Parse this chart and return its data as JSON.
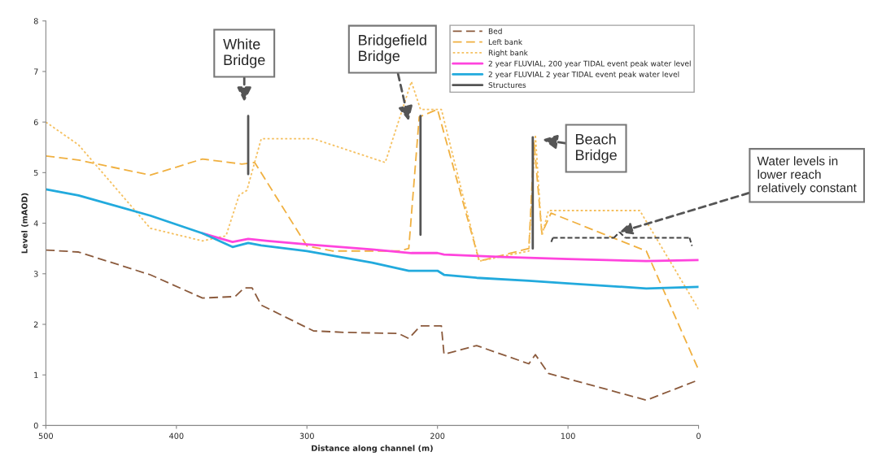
{
  "chart_data": {
    "type": "line",
    "xlabel": "Distance along channel (m)",
    "ylabel": "Level (mAOD)",
    "xlim": [
      500,
      0
    ],
    "ylim": [
      0,
      8
    ],
    "xticks": [
      500,
      400,
      300,
      200,
      100,
      0
    ],
    "yticks": [
      0,
      1,
      2,
      3,
      4,
      5,
      6,
      7,
      8
    ],
    "legend": "top right",
    "grid": false,
    "series": [
      {
        "name": "Bed",
        "color": "#8b5a3c",
        "line_style": "dashed",
        "x": [
          500,
          475,
          420,
          380,
          355,
          348,
          342,
          335,
          295,
          270,
          230,
          222,
          213,
          197,
          195,
          170,
          130,
          125,
          115,
          40,
          0
        ],
        "values": [
          3.47,
          3.43,
          2.98,
          2.52,
          2.55,
          2.72,
          2.72,
          2.38,
          1.87,
          1.84,
          1.82,
          1.72,
          1.97,
          1.97,
          1.41,
          1.58,
          1.22,
          1.4,
          1.03,
          0.5,
          0.9
        ]
      },
      {
        "name": "Left bank",
        "color": "#f0b040",
        "line_style": "dashed",
        "x": [
          500,
          475,
          420,
          380,
          350,
          340,
          300,
          280,
          230,
          222,
          214,
          200,
          168,
          130,
          126,
          120,
          113,
          40,
          0
        ],
        "values": [
          5.33,
          5.25,
          4.95,
          5.27,
          5.17,
          5.2,
          3.55,
          3.45,
          3.45,
          3.5,
          6.1,
          6.25,
          3.25,
          3.5,
          5.6,
          3.8,
          4.2,
          3.45,
          1.1
        ]
      },
      {
        "name": "Right bank",
        "color": "#f5c060",
        "line_style": "dotted",
        "x": [
          500,
          475,
          420,
          380,
          362,
          352,
          346,
          335,
          295,
          240,
          220,
          213,
          197,
          168,
          130,
          125,
          120,
          115,
          45,
          0
        ],
        "values": [
          6.0,
          5.55,
          3.9,
          3.65,
          3.75,
          4.55,
          4.65,
          5.67,
          5.67,
          5.2,
          6.8,
          6.25,
          6.25,
          3.25,
          3.45,
          5.75,
          3.75,
          4.25,
          4.25,
          2.3
        ]
      },
      {
        "name": "2 year FLUVIAL, 200 year TIDAL event peak water level",
        "color": "#ff44dd",
        "line_style": "solid",
        "x": [
          380,
          357,
          345,
          330,
          300,
          250,
          220,
          200,
          195,
          150,
          100,
          40,
          0
        ],
        "values": [
          3.8,
          3.63,
          3.69,
          3.65,
          3.58,
          3.48,
          3.41,
          3.41,
          3.38,
          3.33,
          3.29,
          3.25,
          3.27
        ]
      },
      {
        "name": "2 year FLUVIAL 2 year TIDAL event peak water level",
        "color": "#22aadd",
        "line_style": "solid",
        "x": [
          500,
          475,
          420,
          380,
          357,
          345,
          335,
          300,
          250,
          222,
          200,
          195,
          170,
          130,
          100,
          40,
          0
        ],
        "values": [
          4.67,
          4.55,
          4.15,
          3.8,
          3.53,
          3.61,
          3.56,
          3.45,
          3.22,
          3.06,
          3.06,
          2.98,
          2.92,
          2.86,
          2.81,
          2.71,
          2.74
        ]
      },
      {
        "name": "Structures",
        "color": "#555555",
        "line_style": "solid",
        "x": [
          345,
          345,
          null,
          213,
          213,
          null,
          127,
          127
        ],
        "values": [
          4.97,
          6.12,
          null,
          3.77,
          6.12,
          null,
          3.5,
          5.7
        ]
      }
    ],
    "annotations": [
      "White\nBridge",
      "Bridgefield\nBridge",
      "Beach\nBridge",
      "Water levels in\nlower reach\nrelatively constant"
    ]
  }
}
